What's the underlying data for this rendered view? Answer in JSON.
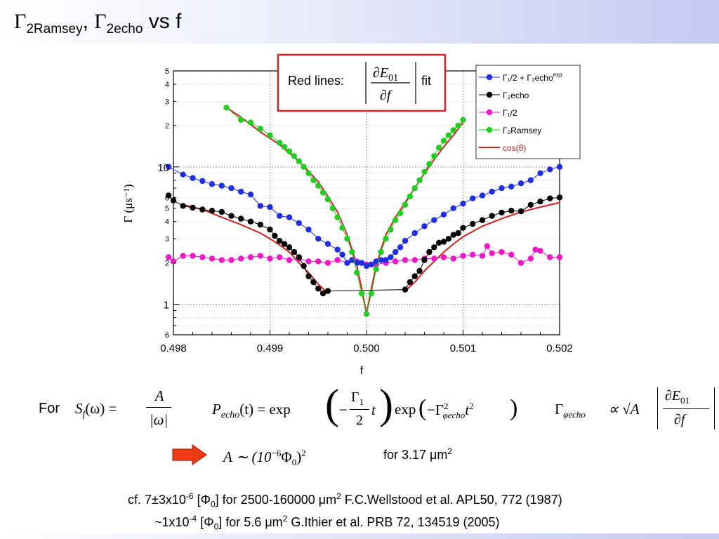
{
  "slide": {
    "title_gamma": "Γ",
    "title_sub1": "2Ramsey",
    "title_comma": ",",
    "title_sub2": "2echo",
    "title_tail": " vs f"
  },
  "annotation": {
    "prefix": "Red lines:",
    "numerator": "∂E",
    "numerator_sub": "01",
    "denominator": "∂f",
    "suffix": "fit",
    "border_color": "#d9202a"
  },
  "equations": {
    "for_label": "For",
    "sf_lhs": "S",
    "sf_sub": "f",
    "sf_arg": "(ω) =",
    "sf_num": "A",
    "sf_den": "|ω|",
    "pecho": "P",
    "pecho_sub": "echo",
    "pecho_arg": "(t) = exp",
    "pecho_frac_num": "Γ",
    "pecho_frac_num_sub": "1",
    "pecho_frac_den": "2",
    "pecho_t": "t",
    "pecho_exp2": "exp",
    "pecho_inner": "−Γ",
    "pecho_inner_sup": "2",
    "pecho_inner_sub": "φecho",
    "pecho_inner_t": "t",
    "pecho_inner_t_sup": "2",
    "gamma_lhs": "Γ",
    "gamma_lhs_sub": "φecho",
    "gamma_prop": "∝ √A",
    "gamma_num": "∂E",
    "gamma_num_sub": "01",
    "gamma_den": "∂f",
    "A_eq": "A ∼ (10",
    "A_eq_sup": "−6",
    "A_eq_tail": "Φ",
    "A_eq_tail_sub": "0",
    "A_eq_close": ")",
    "A_eq_close_sup": "2",
    "area_text": "for 3.17 μm",
    "area_sup": "2"
  },
  "references": [
    {
      "pre": "cf. 7±3x10",
      "sup": "-6",
      "mid": " [Φ",
      "sub": "0",
      "post": "] for 2500-160000 μm",
      "sup2": "2",
      "tail": " F.C.Wellstood et al. APL50, 772 (1987)"
    },
    {
      "pre": "~1x10",
      "sup": "-4",
      "mid": " [Φ",
      "sub": "0",
      "post": "] for 5.6 μm",
      "sup2": "2",
      "tail": "   G.Ithier et al. PRB 72, 134519 (2005)"
    }
  ],
  "chart_data": {
    "type": "scatter",
    "title": "",
    "xlabel": "f",
    "ylabel": "Γ (μs⁻¹)",
    "xlim": [
      0.498,
      0.502
    ],
    "ylim": [
      0.6,
      50
    ],
    "yscale": "log",
    "grid": true,
    "legend_position": "top-right",
    "x_ticks": [
      "0.498",
      "0.499",
      "0.500",
      "0.501",
      "0.502"
    ],
    "y_major_ticks": [
      "1",
      "10"
    ],
    "y_minor_ticks": [
      "6",
      "2",
      "3",
      "4",
      "5",
      "6",
      "2",
      "3",
      "4",
      "5"
    ],
    "legend": [
      {
        "label": "Γ₁/2 + Γ₂echo",
        "sup": "exp",
        "color": "#1f2fe0"
      },
      {
        "label": "Γ₂echo",
        "color": "#000000"
      },
      {
        "label": "Γ₁/2",
        "color": "#ee18c4"
      },
      {
        "label": "Γ₂Ramsey",
        "color": "#22cc22"
      },
      {
        "label": "cos(θ)",
        "color": "#d02020",
        "line_only": true
      }
    ],
    "series": [
      {
        "name": "Γ₁/2 + Γ₂echo^exp",
        "color": "#1f2fe0",
        "connected": true,
        "x": [
          0.49795,
          0.4981,
          0.4982,
          0.4983,
          0.4984,
          0.4985,
          0.4986,
          0.4987,
          0.4988,
          0.4989,
          0.499,
          0.4991,
          0.4992,
          0.4993,
          0.4994,
          0.4995,
          0.4996,
          0.4997,
          0.49975,
          0.4998,
          0.49985,
          0.4999,
          0.49995,
          0.5,
          0.50005,
          0.5001,
          0.50015,
          0.5002,
          0.50025,
          0.5003,
          0.50035,
          0.5004,
          0.5005,
          0.5006,
          0.5007,
          0.5008,
          0.5009,
          0.501,
          0.5011,
          0.5012,
          0.5013,
          0.5014,
          0.5015,
          0.5016,
          0.5017,
          0.5018,
          0.5019,
          0.502
        ],
        "y": [
          10,
          8.8,
          8.3,
          7.9,
          7.5,
          7.3,
          7.0,
          6.6,
          6.3,
          5.2,
          5.1,
          4.4,
          4.3,
          3.9,
          3.5,
          3.0,
          2.75,
          2.5,
          2.3,
          2.0,
          2.1,
          2.0,
          2.0,
          1.9,
          1.95,
          2.05,
          2.1,
          2.1,
          2.2,
          2.4,
          2.6,
          2.9,
          3.3,
          3.7,
          4.1,
          4.5,
          5.0,
          5.4,
          5.9,
          6.2,
          6.6,
          7.0,
          7.2,
          7.6,
          8.0,
          9.0,
          9.6,
          10
        ]
      },
      {
        "name": "Γ₂echo",
        "color": "#000000",
        "connected": true,
        "x": [
          0.49795,
          0.498,
          0.4981,
          0.4982,
          0.4983,
          0.4984,
          0.4985,
          0.4986,
          0.4987,
          0.4988,
          0.4989,
          0.499,
          0.49905,
          0.4991,
          0.49915,
          0.4992,
          0.49925,
          0.4993,
          0.49935,
          0.4994,
          0.49945,
          0.4995,
          0.49955,
          0.4996,
          0.5004,
          0.50045,
          0.5005,
          0.50055,
          0.5006,
          0.50065,
          0.5007,
          0.50075,
          0.5008,
          0.50085,
          0.5009,
          0.50095,
          0.501,
          0.5011,
          0.5012,
          0.5013,
          0.5014,
          0.5015,
          0.5016,
          0.5017,
          0.5018,
          0.5019,
          0.502
        ],
        "y": [
          6.2,
          5.7,
          5.2,
          5.05,
          4.9,
          4.8,
          4.7,
          4.4,
          4.2,
          4.0,
          3.8,
          3.5,
          3.15,
          2.9,
          2.75,
          2.6,
          2.4,
          2.2,
          1.9,
          1.6,
          1.45,
          1.3,
          1.2,
          1.25,
          1.28,
          1.45,
          1.6,
          1.75,
          2.1,
          2.4,
          2.6,
          2.8,
          2.85,
          3.0,
          3.2,
          3.3,
          3.6,
          3.85,
          4.1,
          4.4,
          4.65,
          4.8,
          4.75,
          5.3,
          5.6,
          5.9,
          6.0
        ]
      },
      {
        "name": "Γ₁/2",
        "color": "#ee18c4",
        "connected": true,
        "x": [
          0.49795,
          0.498,
          0.4981,
          0.4982,
          0.4983,
          0.4984,
          0.4985,
          0.4986,
          0.4987,
          0.4988,
          0.4989,
          0.499,
          0.4991,
          0.4992,
          0.4993,
          0.4994,
          0.4995,
          0.4996,
          0.4997,
          0.4998,
          0.4999,
          0.5,
          0.5001,
          0.5002,
          0.5003,
          0.5004,
          0.5005,
          0.5006,
          0.5007,
          0.5008,
          0.5009,
          0.501,
          0.5011,
          0.5012,
          0.50125,
          0.5013,
          0.5014,
          0.5015,
          0.5016,
          0.5017,
          0.50175,
          0.5018,
          0.5019,
          0.502
        ],
        "y": [
          2.2,
          2.05,
          2.25,
          2.25,
          2.2,
          2.15,
          2.1,
          2.1,
          2.15,
          2.2,
          2.25,
          2.15,
          2.2,
          2.1,
          2.15,
          2.05,
          2.05,
          2.0,
          2.1,
          2.0,
          2.05,
          1.95,
          1.95,
          2.0,
          2.05,
          2.1,
          2.1,
          2.15,
          2.15,
          2.2,
          2.15,
          2.25,
          2.3,
          2.25,
          2.65,
          2.35,
          2.4,
          2.3,
          2.0,
          2.15,
          2.5,
          2.45,
          2.2,
          2.2
        ]
      },
      {
        "name": "Γ₂Ramsey",
        "color": "#22cc22",
        "connected": true,
        "x": [
          0.49855,
          0.4987,
          0.4988,
          0.4989,
          0.499,
          0.4991,
          0.49915,
          0.4992,
          0.49925,
          0.4993,
          0.49935,
          0.4994,
          0.49945,
          0.4995,
          0.49955,
          0.4996,
          0.49965,
          0.4997,
          0.49975,
          0.4998,
          0.49985,
          0.4999,
          0.49995,
          0.5,
          0.50005,
          0.5001,
          0.50015,
          0.5002,
          0.50025,
          0.5003,
          0.50035,
          0.5004,
          0.50045,
          0.5005,
          0.50055,
          0.5006,
          0.50065,
          0.5007,
          0.50075,
          0.5008,
          0.50085,
          0.5009,
          0.50095,
          0.501
        ],
        "y": [
          27,
          22,
          21,
          19,
          17,
          15,
          14,
          13,
          12,
          11,
          10,
          9,
          8,
          7.3,
          6.5,
          5.8,
          5,
          4.3,
          3.6,
          3.0,
          2.4,
          1.7,
          1.2,
          0.85,
          1.2,
          1.8,
          2.4,
          3.0,
          3.5,
          4.1,
          4.6,
          5.3,
          6.1,
          7.0,
          8.0,
          9.2,
          10.5,
          12,
          13.8,
          15.5,
          17,
          18.5,
          20,
          22
        ]
      }
    ],
    "fit_curves": [
      {
        "name": "cos(θ)",
        "color": "#d02020",
        "x": [
          0.49855,
          0.4987,
          0.4989,
          0.4991,
          0.4993,
          0.4995,
          0.4996,
          0.4997,
          0.4998,
          0.49985,
          0.4999,
          0.49995,
          0.5,
          0.50005,
          0.5001,
          0.50015,
          0.5002,
          0.5003,
          0.5004,
          0.5005,
          0.5006,
          0.5007,
          0.5008,
          0.5009,
          0.501
        ],
        "y": [
          27,
          23,
          18,
          14.5,
          11,
          7.8,
          6.1,
          4.7,
          3.2,
          2.5,
          1.9,
          1.3,
          0.85,
          1.3,
          1.9,
          2.5,
          3.2,
          4.3,
          5.5,
          7.0,
          9.0,
          11.3,
          14,
          17,
          21
        ]
      },
      {
        "name": "cos(θ)",
        "color": "#d02020",
        "x": [
          0.4981,
          0.4983,
          0.4985,
          0.4987,
          0.4989,
          0.499,
          0.4991,
          0.4992,
          0.4993,
          0.4994,
          0.4995,
          0.4996
        ],
        "y": [
          5.3,
          4.9,
          4.3,
          3.8,
          3.3,
          3.0,
          2.7,
          2.4,
          2.0,
          1.7,
          1.4,
          1.2
        ]
      },
      {
        "name": "cos(θ)",
        "color": "#d02020",
        "x": [
          0.5004,
          0.5005,
          0.5006,
          0.5007,
          0.5008,
          0.5009,
          0.501,
          0.5012,
          0.5014,
          0.5016,
          0.5018,
          0.502
        ],
        "y": [
          1.25,
          1.45,
          1.75,
          2.05,
          2.4,
          2.75,
          3.1,
          3.7,
          4.2,
          4.7,
          5.1,
          5.5
        ]
      }
    ]
  }
}
